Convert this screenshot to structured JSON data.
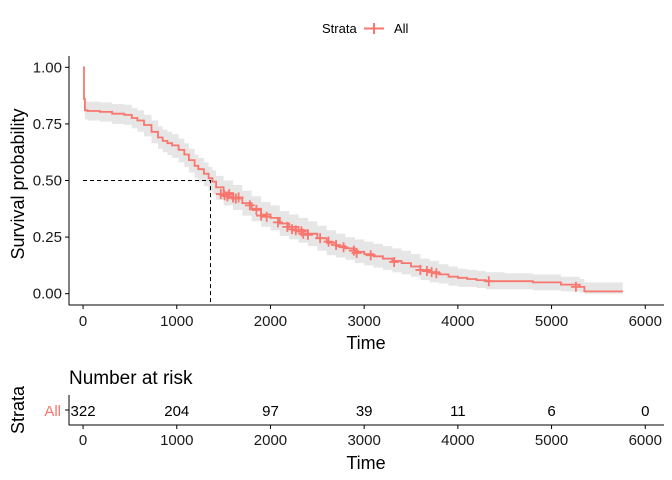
{
  "chart_data": [
    {
      "type": "line",
      "subtype": "kaplan-meier",
      "legend": {
        "title": "Strata",
        "entries": [
          "All"
        ],
        "placement": "top"
      },
      "xlabel": "Time",
      "ylabel": "Survival probability",
      "xlim": [
        -150,
        6200
      ],
      "ylim": [
        -0.05,
        1.05
      ],
      "xticks": [
        "0",
        "1000",
        "2000",
        "3000",
        "4000",
        "5000",
        "6000"
      ],
      "yticks": [
        "0.00",
        "0.25",
        "0.50",
        "0.75",
        "1.00"
      ],
      "color": "#F8766D",
      "ci_color": "#e6e6e6",
      "grid": false,
      "median": 1360,
      "series": [
        {
          "name": "All",
          "x": [
            0,
            10,
            20,
            50,
            180,
            310,
            440,
            520,
            580,
            650,
            730,
            800,
            850,
            900,
            950,
            1020,
            1080,
            1130,
            1190,
            1230,
            1290,
            1340,
            1380,
            1420,
            1500,
            1600,
            1700,
            1800,
            1900,
            2000,
            2100,
            2200,
            2300,
            2400,
            2500,
            2600,
            2700,
            2800,
            2900,
            3000,
            3100,
            3200,
            3300,
            3400,
            3500,
            3600,
            3700,
            3800,
            3900,
            4000,
            4100,
            4200,
            4300,
            4500,
            4800,
            5100,
            5300,
            5350,
            5760
          ],
          "y": [
            1.0,
            0.86,
            0.81,
            0.807,
            0.803,
            0.795,
            0.79,
            0.776,
            0.765,
            0.745,
            0.715,
            0.69,
            0.675,
            0.665,
            0.655,
            0.635,
            0.615,
            0.59,
            0.565,
            0.55,
            0.53,
            0.51,
            0.495,
            0.47,
            0.445,
            0.425,
            0.4,
            0.375,
            0.35,
            0.335,
            0.31,
            0.295,
            0.28,
            0.265,
            0.245,
            0.225,
            0.21,
            0.2,
            0.185,
            0.175,
            0.165,
            0.155,
            0.145,
            0.135,
            0.12,
            0.105,
            0.095,
            0.085,
            0.075,
            0.07,
            0.065,
            0.06,
            0.055,
            0.055,
            0.05,
            0.04,
            0.03,
            0.01,
            0.01
          ],
          "lower": [
            1.0,
            0.83,
            0.77,
            0.765,
            0.76,
            0.75,
            0.745,
            0.73,
            0.715,
            0.695,
            0.665,
            0.64,
            0.625,
            0.612,
            0.6,
            0.58,
            0.56,
            0.535,
            0.51,
            0.495,
            0.475,
            0.455,
            0.44,
            0.415,
            0.39,
            0.37,
            0.345,
            0.32,
            0.295,
            0.28,
            0.255,
            0.24,
            0.225,
            0.21,
            0.19,
            0.17,
            0.16,
            0.15,
            0.135,
            0.125,
            0.115,
            0.105,
            0.095,
            0.085,
            0.075,
            0.06,
            0.05,
            0.045,
            0.035,
            0.03,
            0.03,
            0.025,
            0.02,
            0.02,
            0.015,
            0.01,
            0.005,
            0.0,
            0.0
          ],
          "upper": [
            1.0,
            0.89,
            0.85,
            0.848,
            0.845,
            0.838,
            0.835,
            0.82,
            0.81,
            0.79,
            0.765,
            0.74,
            0.725,
            0.715,
            0.705,
            0.685,
            0.665,
            0.64,
            0.615,
            0.6,
            0.58,
            0.56,
            0.545,
            0.52,
            0.5,
            0.48,
            0.455,
            0.43,
            0.405,
            0.39,
            0.365,
            0.35,
            0.335,
            0.32,
            0.3,
            0.28,
            0.265,
            0.25,
            0.24,
            0.23,
            0.22,
            0.21,
            0.2,
            0.19,
            0.175,
            0.155,
            0.145,
            0.13,
            0.12,
            0.11,
            0.105,
            0.1,
            0.095,
            0.09,
            0.085,
            0.075,
            0.065,
            0.05,
            0.05
          ],
          "censored_x": [
            1470,
            1510,
            1540,
            1560,
            1600,
            1630,
            1660,
            1780,
            1850,
            1900,
            1960,
            2080,
            2180,
            2230,
            2270,
            2330,
            2350,
            2400,
            2530,
            2620,
            2700,
            2780,
            2890,
            2920,
            3070,
            3320,
            3600,
            3670,
            3720,
            3770,
            4330,
            5260
          ],
          "censored_y": [
            0.44,
            0.435,
            0.43,
            0.44,
            0.425,
            0.42,
            0.425,
            0.39,
            0.37,
            0.345,
            0.34,
            0.315,
            0.295,
            0.285,
            0.28,
            0.275,
            0.265,
            0.26,
            0.245,
            0.23,
            0.215,
            0.205,
            0.19,
            0.18,
            0.17,
            0.14,
            0.105,
            0.1,
            0.095,
            0.09,
            0.055,
            0.03
          ]
        }
      ]
    },
    {
      "type": "table",
      "title": "Number at risk",
      "ylabel": "Strata",
      "xlabel": "Time",
      "xlim": [
        -150,
        6200
      ],
      "xticks": [
        "0",
        "1000",
        "2000",
        "3000",
        "4000",
        "5000",
        "6000"
      ],
      "rows": [
        {
          "label": "All",
          "times": [
            0,
            1000,
            2000,
            3000,
            4000,
            5000,
            6000
          ],
          "values": [
            "322",
            "204",
            "97",
            "39",
            "11",
            "6",
            "0"
          ]
        }
      ]
    }
  ]
}
